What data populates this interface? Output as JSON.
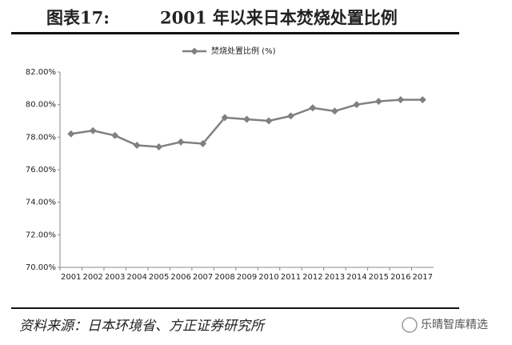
{
  "chart_data": {
    "type": "line",
    "figure_label": "图表17:",
    "title": "2001 年以来日本焚烧处置比例",
    "categories": [
      "2001",
      "2002",
      "2003",
      "2004",
      "2005",
      "2006",
      "2007",
      "2008",
      "2009",
      "2010",
      "2011",
      "2012",
      "2013",
      "2014",
      "2015",
      "2016",
      "2017"
    ],
    "series": [
      {
        "name": "焚烧处置比例 (%)",
        "color": "#808080",
        "values": [
          78.2,
          78.4,
          78.1,
          77.5,
          77.4,
          77.7,
          77.6,
          79.2,
          79.1,
          79.0,
          79.3,
          79.8,
          79.6,
          80.0,
          80.2,
          80.3,
          80.3
        ]
      }
    ],
    "ylim": [
      70,
      82
    ],
    "yticks": [
      {
        "value": 70,
        "label": "70.00%"
      },
      {
        "value": 72,
        "label": "72.00%"
      },
      {
        "value": 74,
        "label": "74.00%"
      },
      {
        "value": 76,
        "label": "76.00%"
      },
      {
        "value": 78,
        "label": "78.00%"
      },
      {
        "value": 80,
        "label": "80.00%"
      },
      {
        "value": 82,
        "label": "82.00%"
      }
    ],
    "grid": false,
    "legend": "top",
    "source": "资料来源：日本环境省、方正证券研究所",
    "watermark": "乐晴智库精选"
  }
}
